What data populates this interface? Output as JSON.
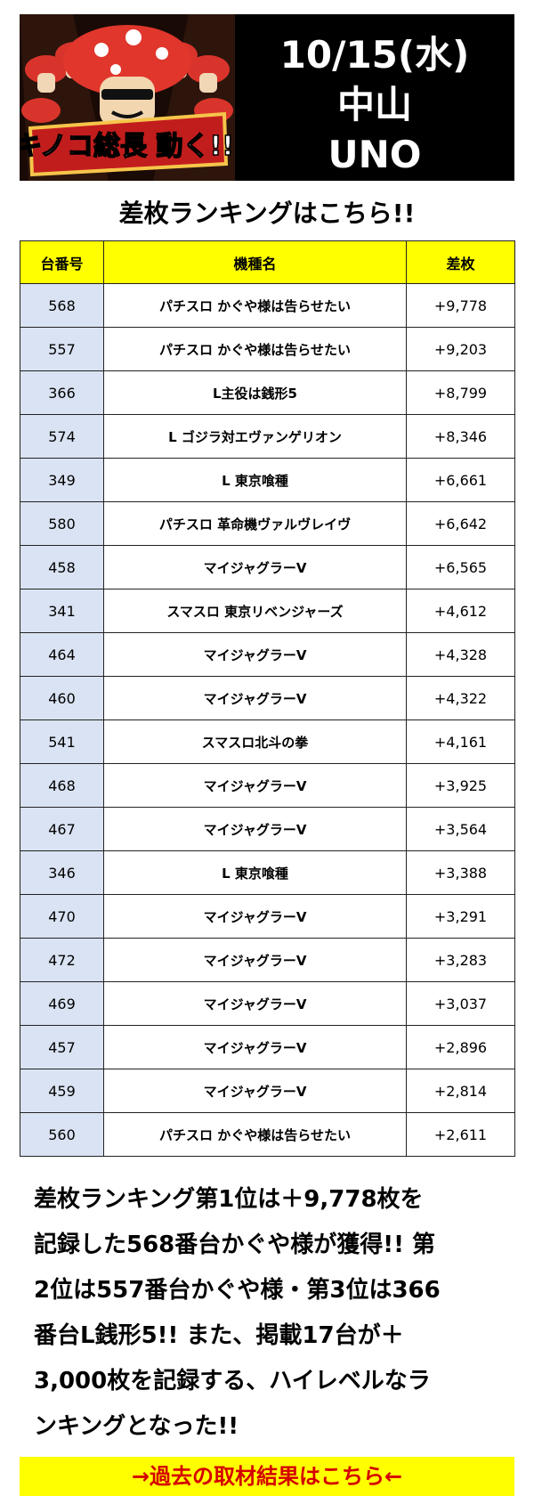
{
  "header": {
    "logo_text": "キノコ総長 動く!!",
    "date": "10/15(水)",
    "area": "中山",
    "store": "UNO"
  },
  "subtitle": "差枚ランキングはこちら!!",
  "table": {
    "columns": [
      "台番号",
      "機種名",
      "差枚"
    ],
    "rows": [
      {
        "num": "568",
        "name": "パチスロ かぐや様は告らせたい",
        "diff": "+9,778"
      },
      {
        "num": "557",
        "name": "パチスロ かぐや様は告らせたい",
        "diff": "+9,203"
      },
      {
        "num": "366",
        "name": "L主役は銭形5",
        "diff": "+8,799"
      },
      {
        "num": "574",
        "name": "L ゴジラ対エヴァンゲリオン",
        "diff": "+8,346"
      },
      {
        "num": "349",
        "name": "L 東京喰種",
        "diff": "+6,661"
      },
      {
        "num": "580",
        "name": "パチスロ 革命機ヴァルヴレイヴ",
        "diff": "+6,642"
      },
      {
        "num": "458",
        "name": "マイジャグラーV",
        "diff": "+6,565"
      },
      {
        "num": "341",
        "name": "スマスロ 東京リベンジャーズ",
        "diff": "+4,612"
      },
      {
        "num": "464",
        "name": "マイジャグラーV",
        "diff": "+4,328"
      },
      {
        "num": "460",
        "name": "マイジャグラーV",
        "diff": "+4,322"
      },
      {
        "num": "541",
        "name": "スマスロ北斗の拳",
        "diff": "+4,161"
      },
      {
        "num": "468",
        "name": "マイジャグラーV",
        "diff": "+3,925"
      },
      {
        "num": "467",
        "name": "マイジャグラーV",
        "diff": "+3,564"
      },
      {
        "num": "346",
        "name": "L 東京喰種",
        "diff": "+3,388"
      },
      {
        "num": "470",
        "name": "マイジャグラーV",
        "diff": "+3,291"
      },
      {
        "num": "472",
        "name": "マイジャグラーV",
        "diff": "+3,283"
      },
      {
        "num": "469",
        "name": "マイジャグラーV",
        "diff": "+3,037"
      },
      {
        "num": "457",
        "name": "マイジャグラーV",
        "diff": "+2,896"
      },
      {
        "num": "459",
        "name": "マイジャグラーV",
        "diff": "+2,814"
      },
      {
        "num": "560",
        "name": "パチスロ かぐや様は告らせたい",
        "diff": "+2,611"
      }
    ]
  },
  "summary_lines": [
    "差枚ランキング第1位は＋9,778枚を",
    "記録した568番台かぐや様が獲得!! 第",
    "2位は557番台かぐや様・第3位は366",
    "番台L銭形5!! また、掲載17台が＋",
    "3,000枚を記録する、ハイレベルなラ",
    "ンキングとなった!!"
  ],
  "link": "→過去の取材結果はこちら←",
  "colors": {
    "header_bg": "#000000",
    "table_header_bg": "#ffff00",
    "num_col_bg": "#dae3f3",
    "link_bg": "#ffff00",
    "link_text": "#d40000"
  }
}
